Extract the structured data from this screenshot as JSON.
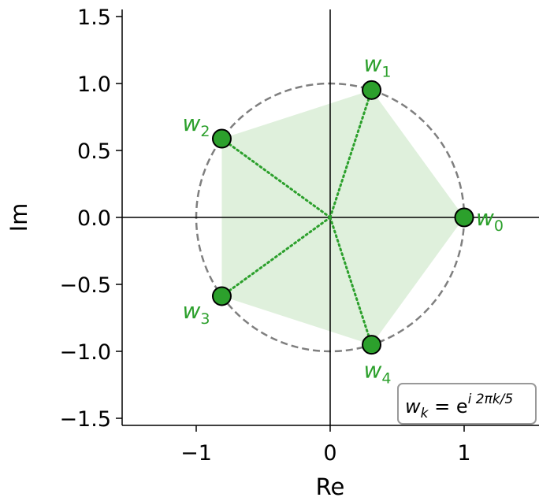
{
  "chart_data": {
    "type": "scatter",
    "title": "",
    "xlabel": "Re",
    "ylabel": "Im",
    "xlim": [
      -1.55,
      1.55
    ],
    "ylim": [
      -1.55,
      1.55
    ],
    "x_ticks": [
      {
        "value": -1,
        "label": "−1"
      },
      {
        "value": 0,
        "label": "0"
      },
      {
        "value": 1,
        "label": "1"
      }
    ],
    "y_ticks": [
      {
        "value": 1.5,
        "label": "1.5"
      },
      {
        "value": 1.0,
        "label": "1.0"
      },
      {
        "value": 0.5,
        "label": "0.5"
      },
      {
        "value": 0.0,
        "label": "0.0"
      },
      {
        "value": -0.5,
        "label": "−0.5"
      },
      {
        "value": -1.0,
        "label": "−1.0"
      },
      {
        "value": -1.5,
        "label": "−1.5"
      }
    ],
    "points": [
      {
        "label": "w",
        "sub": "0",
        "x": 1.0,
        "y": 0.0
      },
      {
        "label": "w",
        "sub": "1",
        "x": 0.309,
        "y": 0.951
      },
      {
        "label": "w",
        "sub": "2",
        "x": -0.809,
        "y": 0.588
      },
      {
        "label": "w",
        "sub": "3",
        "x": -0.809,
        "y": -0.588
      },
      {
        "label": "w",
        "sub": "4",
        "x": 0.309,
        "y": -0.951
      }
    ],
    "unit_circle_radius": 1,
    "grid": false,
    "legend": {
      "placement": "bottom-right",
      "formula_base": "w",
      "formula_sub": "k",
      "formula_eq": " = e",
      "formula_exp": "i 2πk/5"
    },
    "colors": {
      "points": "#2ca02c",
      "polygon_fill": "#dff0dc",
      "circle": "#7f7f7f",
      "labels": "#2ca02c",
      "axes": "#000000"
    }
  }
}
